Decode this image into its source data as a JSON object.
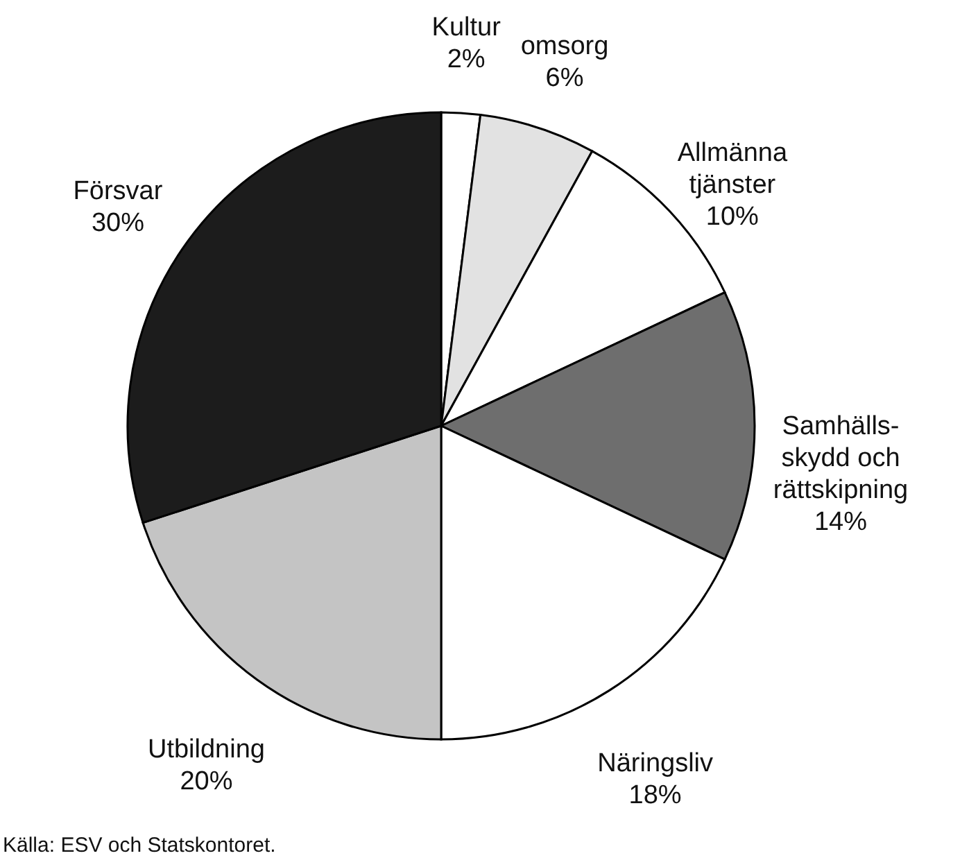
{
  "chart_data": {
    "type": "pie",
    "categories": [
      "Kultur",
      "omsorg",
      "Allmänna\ntjänster",
      "Samhälls-\nskydd och\nrättskipning",
      "Näringsliv",
      "Utbildning",
      "Försvar"
    ],
    "values": [
      2,
      6,
      10,
      14,
      18,
      20,
      30
    ],
    "value_labels": [
      "2%",
      "6%",
      "10%",
      "14%",
      "18%",
      "20%",
      "30%"
    ],
    "colors": [
      "#ffffff",
      "#e2e2e2",
      "#ffffff",
      "#6e6e6e",
      "#ffffff",
      "#c4c4c4",
      "#1c1c1c"
    ],
    "annotations": [
      "Källa: ESV och Statskontoret."
    ]
  }
}
